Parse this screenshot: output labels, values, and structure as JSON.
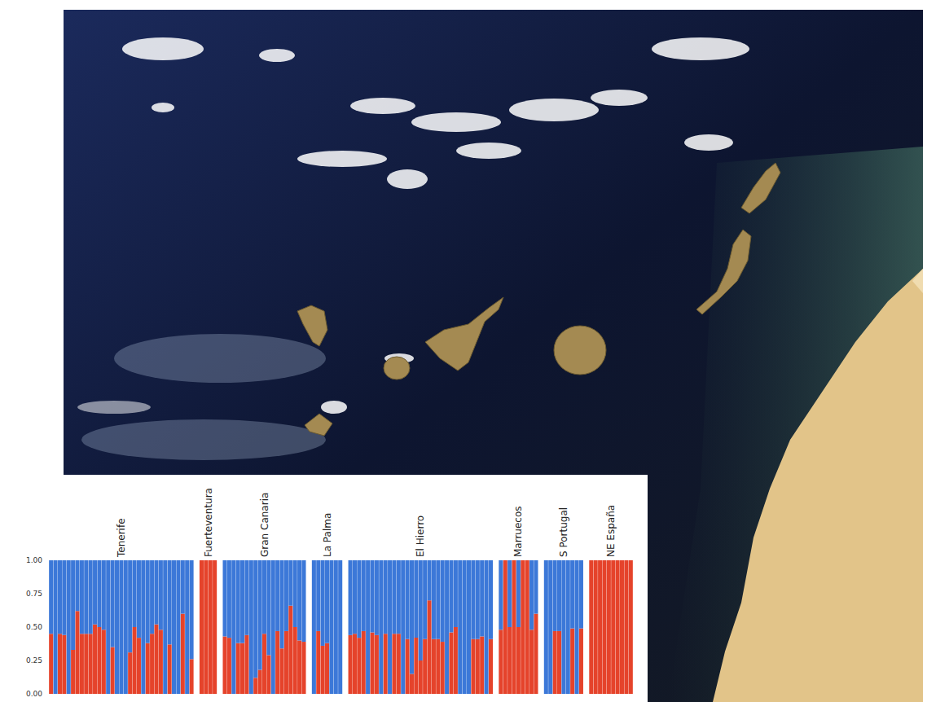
{
  "chart_data": {
    "type": "bar",
    "stacked": true,
    "ylim": [
      0,
      1
    ],
    "yticks": [
      {
        "value": 0,
        "label": "0.00"
      },
      {
        "value": 0.25,
        "label": "0.25"
      },
      {
        "value": 0.5,
        "label": "0.50"
      },
      {
        "value": 0.75,
        "label": "0.75"
      },
      {
        "value": 1,
        "label": "1.00"
      }
    ],
    "tick_labels": "y",
    "grid": false,
    "groups": [
      {
        "label": "Tenerife",
        "series": [
          {
            "color": "#e5432b",
            "values": [
              0.45,
              0,
              0.45,
              0.44,
              0,
              0.33,
              0.62,
              0.45,
              0.45,
              0.45,
              0.52,
              0.5,
              0.48,
              0,
              0.35,
              0,
              0,
              0,
              0.31,
              0.5,
              0.42,
              0,
              0.38,
              0.45,
              0.52,
              0.48,
              0,
              0.37,
              0,
              0,
              0.6,
              0,
              0.26
            ]
          },
          {
            "color": "#3c78d8",
            "values": [
              0.55,
              1,
              0.55,
              0.56,
              1,
              0.67,
              0.38,
              0.55,
              0.55,
              0.55,
              0.48,
              0.5,
              0.52,
              1,
              0.65,
              1,
              1,
              1,
              0.69,
              0.5,
              0.58,
              1,
              0.62,
              0.55,
              0.48,
              0.52,
              1,
              0.63,
              1,
              1,
              0.4,
              1,
              0.74
            ]
          }
        ]
      },
      {
        "label": "Fuerteventura",
        "series": [
          {
            "color": "#e5432b",
            "values": [
              1,
              1,
              1,
              1
            ]
          },
          {
            "color": "#3c78d8",
            "values": [
              0,
              0,
              0,
              0
            ]
          }
        ]
      },
      {
        "label": "Gran Canaria",
        "series": [
          {
            "color": "#e5432b",
            "values": [
              0.43,
              0.42,
              0,
              0.38,
              0.38,
              0.44,
              0,
              0.12,
              0.18,
              0.45,
              0.29,
              0,
              0.47,
              0.34,
              0.47,
              0.66,
              0.5,
              0.4,
              0.39
            ]
          },
          {
            "color": "#3c78d8",
            "values": [
              0.57,
              0.58,
              1,
              0.62,
              0.62,
              0.56,
              1,
              0.88,
              0.82,
              0.55,
              0.71,
              1,
              0.53,
              0.66,
              0.53,
              0.34,
              0.5,
              0.6,
              0.61
            ]
          }
        ]
      },
      {
        "label": "La Palma",
        "series": [
          {
            "color": "#e5432b",
            "values": [
              0,
              0.47,
              0.36,
              0.38,
              0,
              0,
              0
            ]
          },
          {
            "color": "#3c78d8",
            "values": [
              1,
              0.53,
              0.64,
              0.62,
              1,
              1,
              1
            ]
          }
        ]
      },
      {
        "label": "El Hierro",
        "series": [
          {
            "color": "#e5432b",
            "values": [
              0.44,
              0.45,
              0.42,
              0.47,
              0,
              0.46,
              0.44,
              0,
              0.45,
              0,
              0.45,
              0.45,
              0,
              0.41,
              0.15,
              0.42,
              0.25,
              0.41,
              0.7,
              0.41,
              0.41,
              0.39,
              0,
              0.46,
              0.5,
              0,
              0,
              0,
              0.41,
              0.41,
              0.43,
              0,
              0.41
            ]
          },
          {
            "color": "#3c78d8",
            "values": [
              0.56,
              0.55,
              0.58,
              0.53,
              1,
              0.54,
              0.56,
              1,
              0.55,
              1,
              0.55,
              0.55,
              1,
              0.59,
              0.85,
              0.58,
              0.75,
              0.59,
              0.3,
              0.59,
              0.59,
              0.61,
              1,
              0.54,
              0.5,
              1,
              1,
              1,
              0.59,
              0.59,
              0.57,
              1,
              0.59
            ]
          }
        ]
      },
      {
        "label": "Marruecos",
        "series": [
          {
            "color": "#e5432b",
            "values": [
              0.48,
              1,
              0.5,
              1,
              0.5,
              1,
              1,
              0.48,
              0.6
            ]
          },
          {
            "color": "#3c78d8",
            "values": [
              0.52,
              0,
              0.5,
              0,
              0.5,
              0,
              0,
              0.52,
              0.4
            ]
          }
        ]
      },
      {
        "label": "S Portugal",
        "series": [
          {
            "color": "#e5432b",
            "values": [
              0,
              0,
              0.47,
              0.47,
              0,
              0,
              0.49,
              0,
              0.49
            ]
          },
          {
            "color": "#3c78d8",
            "values": [
              1,
              1,
              0.53,
              0.53,
              1,
              1,
              0.51,
              1,
              0.51
            ]
          }
        ]
      },
      {
        "label": "NE España",
        "series": [
          {
            "color": "#e5432b",
            "values": [
              1,
              1,
              1,
              1,
              1,
              1,
              1,
              1,
              1,
              1
            ]
          },
          {
            "color": "#3c78d8",
            "values": [
              0,
              0,
              0,
              0,
              0,
              0,
              0,
              0,
              0,
              0
            ]
          }
        ]
      }
    ]
  }
}
